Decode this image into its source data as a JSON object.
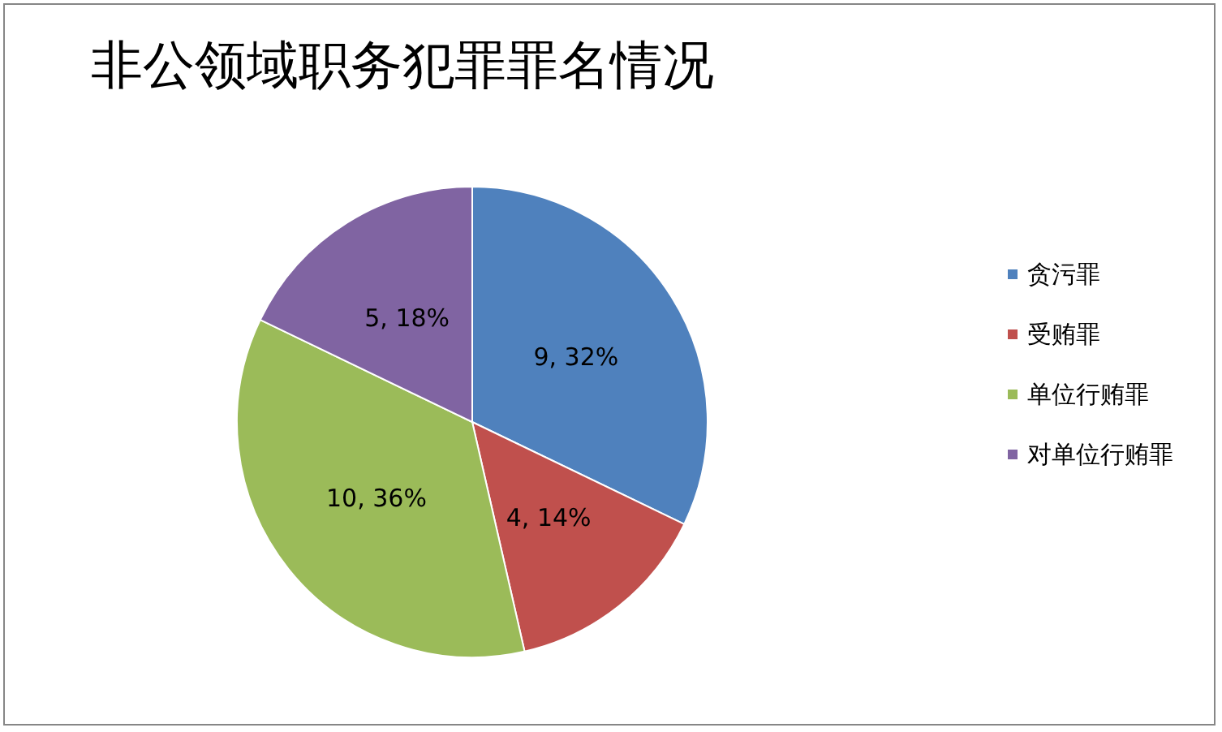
{
  "chart_data": {
    "type": "pie",
    "title": "非公领域职务犯罪罪名情况",
    "categories": [
      "贪污罪",
      "受贿罪",
      "单位行贿罪",
      "对单位行贿罪"
    ],
    "values": [
      9,
      4,
      10,
      5
    ],
    "value_labels": [
      "9, 32%",
      "4, 14%",
      "10, 36%",
      "5, 18%"
    ],
    "colors": [
      "#4f81bd",
      "#c0504d",
      "#9bbb59",
      "#8064a2"
    ],
    "legend": "right"
  }
}
